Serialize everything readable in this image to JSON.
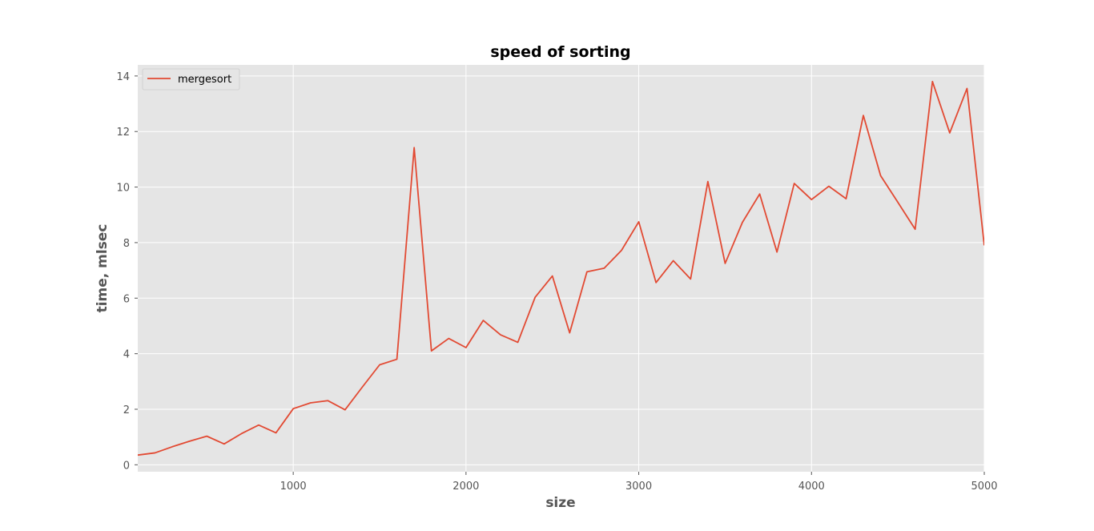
{
  "chart_data": {
    "type": "line",
    "title": "speed of sorting",
    "xlabel": "size",
    "ylabel": "time, mlsec",
    "xlim": [
      100,
      5000
    ],
    "ylim": [
      -0.25,
      14.4
    ],
    "x_ticks": [
      1000,
      2000,
      3000,
      4000,
      5000
    ],
    "y_ticks": [
      0,
      2,
      4,
      6,
      8,
      10,
      12,
      14
    ],
    "grid": true,
    "legend_position": "top-left",
    "colors": {
      "plot_background": "#e5e5e5",
      "grid": "#ffffff",
      "series": "#e24a33"
    },
    "series": [
      {
        "name": "mergesort",
        "x": [
          100,
          200,
          300,
          400,
          500,
          600,
          700,
          800,
          900,
          1000,
          1100,
          1200,
          1300,
          1400,
          1500,
          1600,
          1700,
          1800,
          1900,
          2000,
          2100,
          2200,
          2300,
          2400,
          2500,
          2600,
          2700,
          2800,
          2900,
          3000,
          3100,
          3200,
          3300,
          3400,
          3500,
          3600,
          3700,
          3800,
          3900,
          4000,
          4100,
          4200,
          4300,
          4400,
          4500,
          4600,
          4700,
          4800,
          4900,
          5000
        ],
        "values": [
          0.35,
          0.43,
          0.65,
          0.85,
          1.03,
          0.75,
          1.12,
          1.43,
          1.15,
          2.02,
          2.23,
          2.31,
          1.98,
          2.8,
          3.6,
          3.8,
          11.42,
          4.1,
          4.55,
          4.22,
          5.2,
          4.68,
          4.41,
          6.03,
          6.8,
          4.75,
          6.95,
          7.08,
          7.72,
          8.75,
          6.56,
          7.35,
          6.69,
          10.2,
          7.25,
          8.73,
          9.75,
          7.66,
          10.13,
          9.55,
          10.03,
          9.58,
          12.58,
          10.41,
          9.45,
          8.48,
          13.8,
          11.95,
          13.55,
          7.9
        ]
      }
    ]
  }
}
